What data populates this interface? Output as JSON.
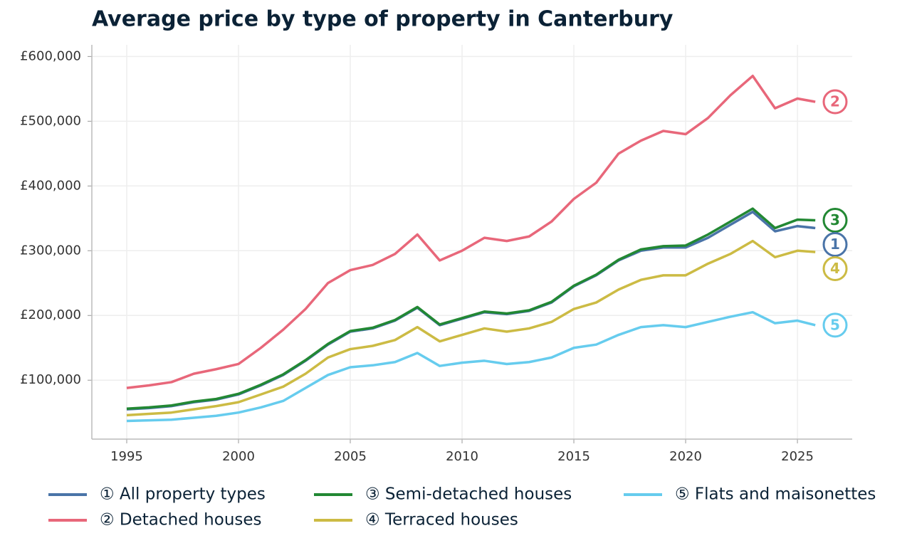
{
  "chart_data": {
    "type": "line",
    "title": "Average price by type of property in Canterbury",
    "x": [
      1995,
      1996,
      1997,
      1998,
      1999,
      2000,
      2001,
      2002,
      2003,
      2004,
      2005,
      2006,
      2007,
      2008,
      2009,
      2010,
      2011,
      2012,
      2013,
      2014,
      2015,
      2016,
      2017,
      2018,
      2019,
      2020,
      2021,
      2022,
      2023,
      2024,
      2025,
      2025.8
    ],
    "xlim": [
      1993.44,
      2027.45
    ],
    "xticks": [
      1995,
      2000,
      2005,
      2010,
      2015,
      2020,
      2025
    ],
    "ylim": [
      9000,
      618000
    ],
    "yticks": [
      {
        "value": 100000,
        "label": "£100,000"
      },
      {
        "value": 200000,
        "label": "£200,000"
      },
      {
        "value": 300000,
        "label": "£300,000"
      },
      {
        "value": 400000,
        "label": "£400,000"
      },
      {
        "value": 500000,
        "label": "£500,000"
      },
      {
        "value": 600000,
        "label": "£600,000"
      }
    ],
    "grid": true,
    "series": [
      {
        "name": "① All property types",
        "label": "1",
        "color": "#4a74a8",
        "values": [
          55000,
          57000,
          60000,
          66000,
          70000,
          78000,
          92000,
          108000,
          130000,
          155000,
          175000,
          180000,
          192000,
          212000,
          185000,
          195000,
          205000,
          202000,
          207000,
          220000,
          245000,
          262000,
          285000,
          300000,
          305000,
          305000,
          320000,
          340000,
          360000,
          330000,
          338000,
          335000
        ]
      },
      {
        "name": "② Detached houses",
        "label": "2",
        "color": "#e8677a",
        "values": [
          88000,
          92000,
          97000,
          110000,
          117000,
          125000,
          150000,
          178000,
          210000,
          250000,
          270000,
          278000,
          295000,
          325000,
          285000,
          300000,
          320000,
          315000,
          322000,
          345000,
          380000,
          405000,
          450000,
          470000,
          485000,
          480000,
          505000,
          540000,
          570000,
          520000,
          535000,
          530000
        ]
      },
      {
        "name": "③ Semi-detached houses",
        "label": "3",
        "color": "#228833",
        "values": [
          56000,
          58000,
          61000,
          67000,
          71000,
          79000,
          93000,
          109000,
          131000,
          156000,
          176000,
          181000,
          193000,
          213000,
          186000,
          196000,
          206000,
          203000,
          208000,
          221000,
          246000,
          263000,
          286000,
          302000,
          307000,
          308000,
          325000,
          345000,
          365000,
          335000,
          348000,
          347000
        ]
      },
      {
        "name": "④ Terraced houses",
        "label": "4",
        "color": "#ccbb44",
        "values": [
          46000,
          48000,
          50000,
          55000,
          60000,
          66000,
          78000,
          90000,
          110000,
          135000,
          148000,
          153000,
          162000,
          182000,
          160000,
          170000,
          180000,
          175000,
          180000,
          190000,
          210000,
          220000,
          240000,
          255000,
          262000,
          262000,
          280000,
          295000,
          315000,
          290000,
          300000,
          298000
        ]
      },
      {
        "name": "⑤ Flats and maisonettes",
        "label": "5",
        "color": "#66ccee",
        "values": [
          37000,
          38000,
          39000,
          42000,
          45000,
          50000,
          58000,
          68000,
          88000,
          108000,
          120000,
          123000,
          128000,
          142000,
          122000,
          127000,
          130000,
          125000,
          128000,
          135000,
          150000,
          155000,
          170000,
          182000,
          185000,
          182000,
          190000,
          198000,
          205000,
          188000,
          192000,
          185000
        ]
      }
    ]
  }
}
